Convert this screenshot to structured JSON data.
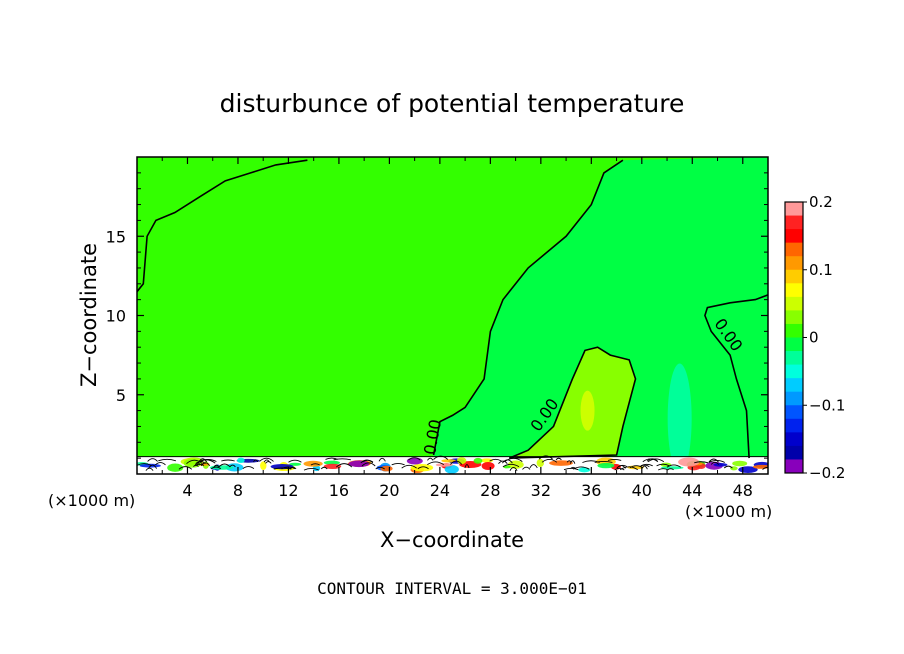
{
  "chart_data": {
    "type": "heatmap",
    "title": "disturbunce of potential temperature",
    "xlabel": "X−coordinate",
    "ylabel": "Z−coordinate",
    "x_unit": "(×1000 m)",
    "x_unit_secondary": "(×1000 m)",
    "xlim": [
      0,
      50
    ],
    "ylim": [
      0,
      20
    ],
    "x_ticks": [
      4,
      8,
      12,
      16,
      20,
      24,
      28,
      32,
      36,
      40,
      44,
      48
    ],
    "y_ticks": [
      5,
      10,
      15
    ],
    "contour_label": "0.00",
    "footer": "CONTOUR INTERVAL = 3.000E−01",
    "colorbar": {
      "range": [
        -0.2,
        0.2
      ],
      "tick_labels": [
        {
          "value": 0.2,
          "label": "0.2"
        },
        {
          "value": 0.1,
          "label": "0.1"
        },
        {
          "value": 0,
          "label": "0"
        },
        {
          "value": -0.1,
          "label": "−0.1"
        },
        {
          "value": -0.2,
          "label": "−0.2"
        }
      ],
      "colors_top_to_bottom": [
        "#ff9999",
        "#ff2222",
        "#ff0000",
        "#ff6600",
        "#ff9900",
        "#ffcc00",
        "#ffff00",
        "#ccff00",
        "#88ff00",
        "#33ff00",
        "#00ff44",
        "#00ff99",
        "#00ffdd",
        "#00ccff",
        "#0099ff",
        "#0055ff",
        "#0022ee",
        "#0000cc",
        "#0000aa",
        "#8800bb"
      ]
    },
    "field_colors": {
      "background_left": "#33ff00",
      "background_right": "#00ff44",
      "positive_blob": "#88ff00",
      "negative_blob": "#00ff99"
    },
    "contour_0": {
      "left_boundary": [
        [
          0,
          11.5
        ],
        [
          0.5,
          12
        ],
        [
          0.8,
          15
        ],
        [
          1.5,
          16
        ],
        [
          3,
          16.5
        ],
        [
          5,
          17.5
        ],
        [
          7,
          18.5
        ],
        [
          9,
          19
        ],
        [
          11,
          19.5
        ],
        [
          13.5,
          19.8
        ]
      ],
      "middle_boundary": [
        [
          23.5,
          1.2
        ],
        [
          24,
          3.3
        ],
        [
          25,
          3.7
        ],
        [
          26,
          4.2
        ],
        [
          27.5,
          6
        ],
        [
          28,
          9
        ],
        [
          29,
          11
        ],
        [
          31,
          13
        ],
        [
          34,
          15
        ],
        [
          36,
          17
        ],
        [
          37,
          19
        ],
        [
          38.5,
          19.8
        ]
      ],
      "blob_positive": [
        [
          29.5,
          1
        ],
        [
          31,
          1.5
        ],
        [
          33,
          3
        ],
        [
          34.5,
          6
        ],
        [
          35.5,
          7.8
        ],
        [
          36.5,
          8
        ],
        [
          37.5,
          7.5
        ],
        [
          39,
          7.2
        ],
        [
          39.5,
          6
        ],
        [
          38.5,
          3
        ],
        [
          38,
          1.2
        ]
      ],
      "right_boundary": [
        [
          48.5,
          1
        ],
        [
          48.3,
          4
        ],
        [
          47.5,
          6
        ],
        [
          47,
          7.5
        ],
        [
          45.5,
          9
        ],
        [
          45,
          10
        ],
        [
          45.2,
          10.5
        ],
        [
          47,
          10.8
        ],
        [
          49,
          11
        ],
        [
          50,
          11.3
        ]
      ]
    }
  }
}
